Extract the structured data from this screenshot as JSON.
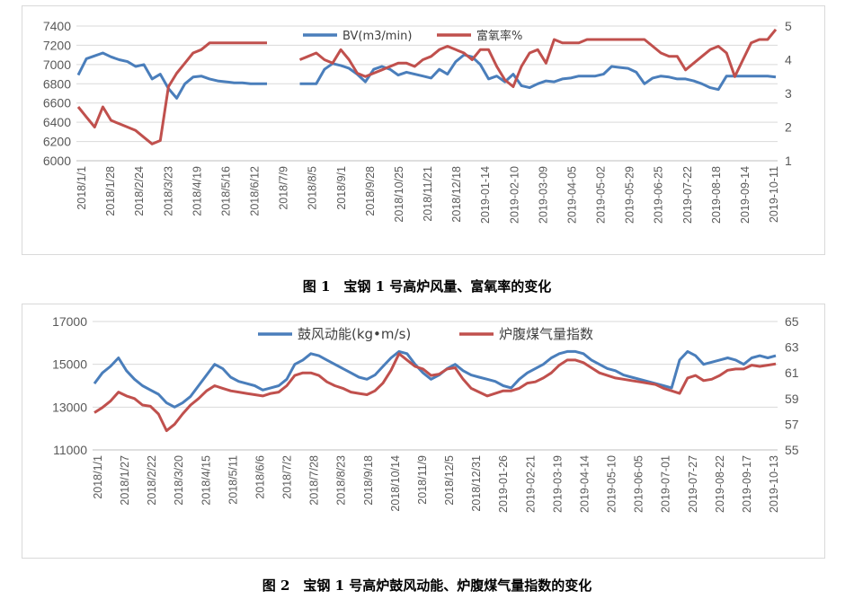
{
  "colors": {
    "blue": "#4a7ebb",
    "red": "#c0504d",
    "grid": "#d9d9d9",
    "axis_text": "#595959"
  },
  "captions": {
    "fig1": "图 1　宝钢 1 号高炉风量、富氧率的变化",
    "fig2": "图 2　宝钢 1 号高炉鼓风动能、炉腹煤气量指数的变化"
  },
  "chart_data": [
    {
      "type": "line",
      "legend_position": "top-center",
      "grid": true,
      "y_left": {
        "ticks": [
          6000,
          6200,
          6400,
          6600,
          6800,
          7000,
          7200,
          7400
        ],
        "range": [
          6000,
          7400
        ]
      },
      "y_right": {
        "ticks": [
          1,
          2,
          3,
          4,
          5
        ],
        "range": [
          1,
          5
        ]
      },
      "x_labels": [
        "2018/1/1",
        "2018/1/28",
        "2018/2/24",
        "2018/3/23",
        "2018/4/19",
        "2018/5/16",
        "2018/6/12",
        "2018/7/9",
        "2018/8/5",
        "2018/9/1",
        "2018/9/28",
        "2018/10/25",
        "2018/11/21",
        "2018/12/18",
        "2019-01-14",
        "2019-02-10",
        "2019-03-09",
        "2019-04-05",
        "2019-05-02",
        "2019-05-29",
        "2019-06-25",
        "2019-07-22",
        "2019-08-18",
        "2019-09-14",
        "2019-10-11"
      ],
      "series": [
        {
          "name": "BV(m3/min)",
          "axis": "left",
          "color": "#4a7ebb",
          "values": [
            6890,
            7060,
            7090,
            7120,
            7080,
            7050,
            7030,
            6980,
            7000,
            6850,
            6900,
            6750,
            6650,
            6800,
            6870,
            6880,
            6850,
            6830,
            6820,
            6810,
            6810,
            6800,
            6800,
            6800,
            null,
            null,
            null,
            6800,
            6800,
            6800,
            6950,
            7010,
            6990,
            6960,
            6900,
            6820,
            6950,
            6980,
            6950,
            6890,
            6920,
            6900,
            6880,
            6860,
            6950,
            6900,
            7030,
            7100,
            7080,
            7000,
            6850,
            6880,
            6820,
            6900,
            6780,
            6760,
            6800,
            6830,
            6820,
            6850,
            6860,
            6880,
            6880,
            6880,
            6900,
            6980,
            6970,
            6960,
            6920,
            6800,
            6860,
            6880,
            6870,
            6850,
            6850,
            6830,
            6800,
            6760,
            6740,
            6880,
            6880,
            6880,
            6880,
            6880,
            6880,
            6870
          ]
        },
        {
          "name": "富氧率%",
          "axis": "right",
          "color": "#c0504d",
          "values": [
            2.6,
            2.3,
            2.0,
            2.6,
            2.2,
            2.1,
            2.0,
            1.9,
            1.7,
            1.5,
            1.6,
            3.2,
            3.6,
            3.9,
            4.2,
            4.3,
            4.5,
            4.5,
            4.5,
            4.5,
            4.5,
            4.5,
            4.5,
            4.5,
            null,
            null,
            null,
            4.0,
            4.1,
            4.2,
            4.0,
            3.9,
            4.3,
            4.0,
            3.6,
            3.5,
            3.6,
            3.7,
            3.8,
            3.9,
            3.9,
            3.8,
            4.0,
            4.1,
            4.3,
            4.4,
            4.3,
            4.2,
            4.0,
            4.3,
            4.3,
            3.8,
            3.4,
            3.2,
            3.8,
            4.2,
            4.3,
            3.9,
            4.6,
            4.5,
            4.5,
            4.5,
            4.6,
            4.6,
            4.6,
            4.6,
            4.6,
            4.6,
            4.6,
            4.6,
            4.4,
            4.2,
            4.1,
            4.1,
            3.7,
            3.9,
            4.1,
            4.3,
            4.4,
            4.2,
            3.5,
            4.0,
            4.5,
            4.6,
            4.6,
            4.9
          ]
        }
      ]
    },
    {
      "type": "line",
      "legend_position": "top-center",
      "grid": true,
      "y_left": {
        "ticks": [
          11000,
          13000,
          15000,
          17000
        ],
        "range": [
          11000,
          17000
        ]
      },
      "y_right": {
        "ticks": [
          55,
          57,
          59,
          61,
          63,
          65
        ],
        "range": [
          55,
          65
        ]
      },
      "x_labels": [
        "2018/1/1",
        "2018/1/27",
        "2018/2/22",
        "2018/3/20",
        "2018/4/15",
        "2018/5/11",
        "2018/6/6",
        "2018/7/2",
        "2018/7/28",
        "2018/8/23",
        "2018/9/18",
        "2018/10/14",
        "2018/11/9",
        "2018/12/5",
        "2018/12/31",
        "2019-01-26",
        "2019-02-21",
        "2019-03-19",
        "2019-04-14",
        "2019-05-10",
        "2019-06-05",
        "2019-07-01",
        "2019-07-27",
        "2019-08-22",
        "2019-09-17",
        "2019-10-13"
      ],
      "series": [
        {
          "name": "鼓风动能(kg•m/s)",
          "axis": "left",
          "color": "#4a7ebb",
          "values": [
            14100,
            14600,
            14900,
            15300,
            14700,
            14300,
            14000,
            13800,
            13600,
            13200,
            13000,
            13200,
            13500,
            14000,
            14500,
            15000,
            14800,
            14400,
            14200,
            14100,
            14000,
            13800,
            13900,
            14000,
            14300,
            15000,
            15200,
            15500,
            15400,
            15200,
            15000,
            14800,
            14600,
            14400,
            14300,
            14500,
            14900,
            15300,
            15600,
            15500,
            15000,
            14600,
            14300,
            14500,
            14800,
            15000,
            14700,
            14500,
            14400,
            14300,
            14200,
            14000,
            13900,
            14300,
            14600,
            14800,
            15000,
            15300,
            15500,
            15600,
            15600,
            15500,
            15200,
            15000,
            14800,
            14700,
            14500,
            14400,
            14300,
            14200,
            14100,
            14000,
            13900,
            15200,
            15600,
            15400,
            15000,
            15100,
            15200,
            15300,
            15200,
            15000,
            15300,
            15400,
            15300,
            15400
          ]
        },
        {
          "name": "炉腹煤气量指数",
          "axis": "right",
          "color": "#c0504d",
          "values": [
            57.9,
            58.3,
            58.8,
            59.5,
            59.2,
            59.0,
            58.5,
            58.4,
            57.8,
            56.5,
            57.0,
            57.8,
            58.5,
            59.0,
            59.6,
            60.0,
            59.8,
            59.6,
            59.5,
            59.4,
            59.3,
            59.2,
            59.4,
            59.5,
            60.0,
            60.8,
            61.0,
            61.0,
            60.8,
            60.3,
            60.0,
            59.8,
            59.5,
            59.4,
            59.3,
            59.6,
            60.2,
            61.2,
            62.5,
            62.0,
            61.5,
            61.3,
            60.8,
            60.9,
            61.3,
            61.4,
            60.5,
            59.8,
            59.5,
            59.2,
            59.4,
            59.6,
            59.6,
            59.8,
            60.2,
            60.3,
            60.6,
            61.0,
            61.6,
            62.0,
            62.0,
            61.8,
            61.4,
            61.0,
            60.8,
            60.6,
            60.5,
            60.4,
            60.3,
            60.2,
            60.1,
            59.8,
            59.6,
            59.4,
            60.6,
            60.8,
            60.4,
            60.5,
            60.8,
            61.2,
            61.3,
            61.3,
            61.6,
            61.5,
            61.6,
            61.7
          ]
        }
      ]
    }
  ]
}
